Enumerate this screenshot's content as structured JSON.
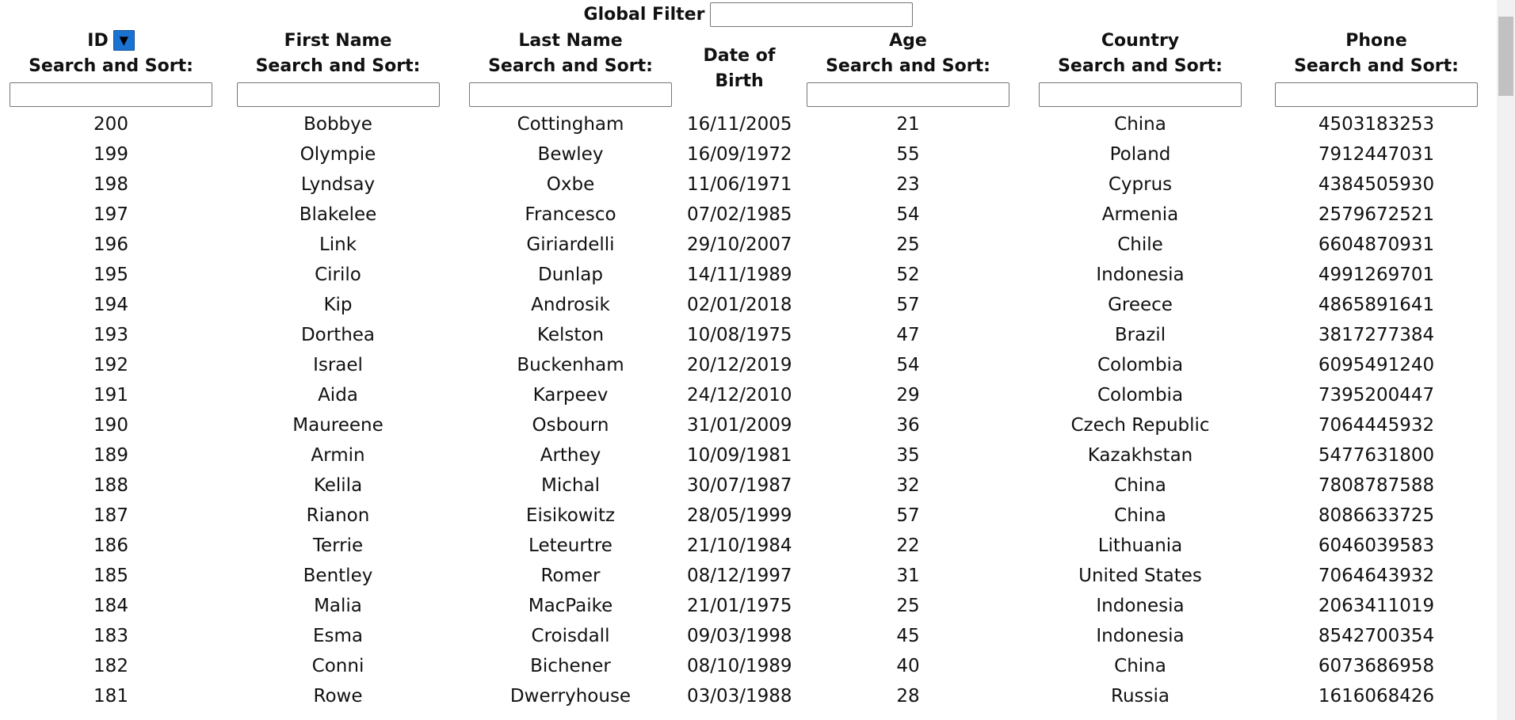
{
  "global_filter": {
    "label": "Global Filter",
    "value": ""
  },
  "columns": [
    {
      "title": "ID",
      "sub": "Search and Sort:",
      "sort_indicator": "▼"
    },
    {
      "title": "First Name",
      "sub": "Search and Sort:"
    },
    {
      "title": "Last Name",
      "sub": "Search and Sort:"
    },
    {
      "title": "Date of",
      "title2": "Birth"
    },
    {
      "title": "Age",
      "sub": "Search and Sort:"
    },
    {
      "title": "Country",
      "sub": "Search and Sort:"
    },
    {
      "title": "Phone",
      "sub": "Search and Sort:"
    }
  ],
  "rows": [
    [
      "200",
      "Bobbye",
      "Cottingham",
      "16/11/2005",
      "21",
      "China",
      "4503183253"
    ],
    [
      "199",
      "Olympie",
      "Bewley",
      "16/09/1972",
      "55",
      "Poland",
      "7912447031"
    ],
    [
      "198",
      "Lyndsay",
      "Oxbe",
      "11/06/1971",
      "23",
      "Cyprus",
      "4384505930"
    ],
    [
      "197",
      "Blakelee",
      "Francesco",
      "07/02/1985",
      "54",
      "Armenia",
      "2579672521"
    ],
    [
      "196",
      "Link",
      "Giriardelli",
      "29/10/2007",
      "25",
      "Chile",
      "6604870931"
    ],
    [
      "195",
      "Cirilo",
      "Dunlap",
      "14/11/1989",
      "52",
      "Indonesia",
      "4991269701"
    ],
    [
      "194",
      "Kip",
      "Androsik",
      "02/01/2018",
      "57",
      "Greece",
      "4865891641"
    ],
    [
      "193",
      "Dorthea",
      "Kelston",
      "10/08/1975",
      "47",
      "Brazil",
      "3817277384"
    ],
    [
      "192",
      "Israel",
      "Buckenham",
      "20/12/2019",
      "54",
      "Colombia",
      "6095491240"
    ],
    [
      "191",
      "Aida",
      "Karpeev",
      "24/12/2010",
      "29",
      "Colombia",
      "7395200447"
    ],
    [
      "190",
      "Maureene",
      "Osbourn",
      "31/01/2009",
      "36",
      "Czech Republic",
      "7064445932"
    ],
    [
      "189",
      "Armin",
      "Arthey",
      "10/09/1981",
      "35",
      "Kazakhstan",
      "5477631800"
    ],
    [
      "188",
      "Kelila",
      "Michal",
      "30/07/1987",
      "32",
      "China",
      "7808787588"
    ],
    [
      "187",
      "Rianon",
      "Eisikowitz",
      "28/05/1999",
      "57",
      "China",
      "8086633725"
    ],
    [
      "186",
      "Terrie",
      "Leteurtre",
      "21/10/1984",
      "22",
      "Lithuania",
      "6046039583"
    ],
    [
      "185",
      "Bentley",
      "Romer",
      "08/12/1997",
      "31",
      "United States",
      "7064643932"
    ],
    [
      "184",
      "Malia",
      "MacPaike",
      "21/01/1975",
      "25",
      "Indonesia",
      "2063411019"
    ],
    [
      "183",
      "Esma",
      "Croisdall",
      "09/03/1998",
      "45",
      "Indonesia",
      "8542700354"
    ],
    [
      "182",
      "Conni",
      "Bichener",
      "08/10/1989",
      "40",
      "China",
      "6073686958"
    ],
    [
      "181",
      "Rowe",
      "Dwerryhouse",
      "03/03/1988",
      "28",
      "Russia",
      "1616068426"
    ]
  ]
}
